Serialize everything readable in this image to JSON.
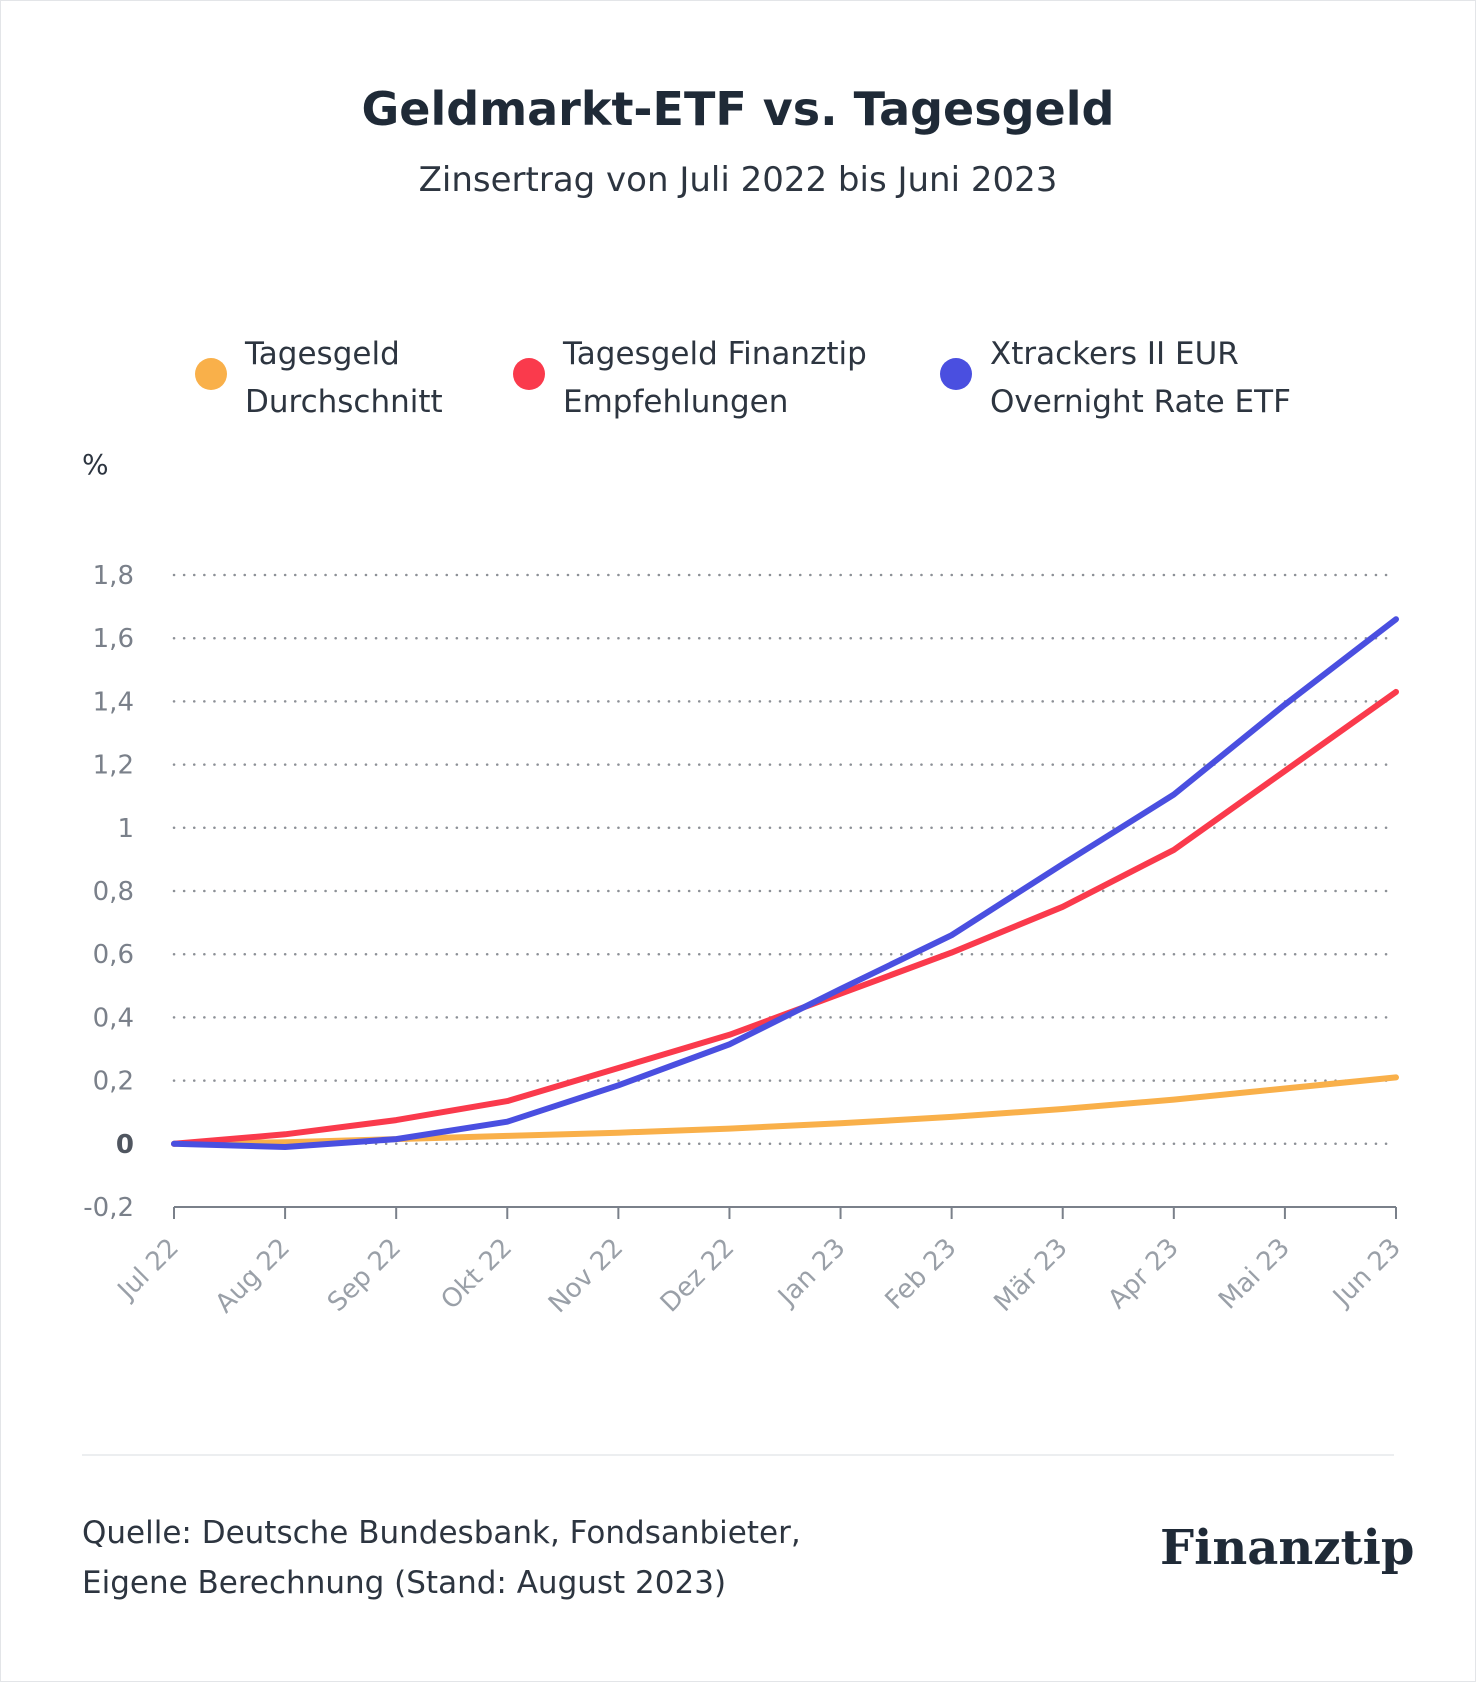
{
  "header": {
    "title": "Geldmarkt-ETF vs. Tagesgeld",
    "subtitle": "Zinsertrag von Juli 2022 bis Juni 2023"
  },
  "legend": [
    {
      "line1": "Tagesgeld",
      "line2": "Durchschnitt",
      "color": "#F9B04A"
    },
    {
      "line1": "Tagesgeld Finanztip",
      "line2": "Empfehlungen",
      "color": "#FA3A4C"
    },
    {
      "line1": "Xtrackers II EUR",
      "line2": "Overnight Rate ETF",
      "color": "#4A4FE0"
    }
  ],
  "footer": {
    "source_line1": "Quelle: Deutsche Bundesbank, Fondsanbieter,",
    "source_line2": "Eigene Berechnung (Stand: August 2023)",
    "logo": "Finanztip"
  },
  "chart_data": {
    "type": "line",
    "title": "Geldmarkt-ETF vs. Tagesgeld",
    "subtitle": "Zinsertrag von Juli 2022 bis Juni 2023",
    "ylabel": "%",
    "xlabel": "",
    "ylim": [
      -0.2,
      1.8
    ],
    "yticks": [
      "-0,2",
      "0",
      "0,2",
      "0,4",
      "0,6",
      "0,8",
      "1",
      "1,2",
      "1,4",
      "1,6",
      "1,8"
    ],
    "ytick_values": [
      -0.2,
      0,
      0.2,
      0.4,
      0.6,
      0.8,
      1.0,
      1.2,
      1.4,
      1.6,
      1.8
    ],
    "categories": [
      "Jul 22",
      "Aug 22",
      "Sep 22",
      "Okt 22",
      "Nov 22",
      "Dez 22",
      "Jan 23",
      "Feb 23",
      "Mär 23",
      "Apr 23",
      "Mai 23",
      "Jun 23"
    ],
    "grid": "horizontal dotted",
    "legend_position": "top",
    "series": [
      {
        "name": "Tagesgeld Durchschnitt",
        "color": "#F9B04A",
        "values": [
          0,
          0.005,
          0.015,
          0.025,
          0.035,
          0.048,
          0.065,
          0.085,
          0.11,
          0.14,
          0.175,
          0.21
        ]
      },
      {
        "name": "Tagesgeld Finanztip Empfehlungen",
        "color": "#FA3A4C",
        "values": [
          0,
          0.03,
          0.075,
          0.135,
          0.24,
          0.345,
          0.475,
          0.605,
          0.75,
          0.93,
          1.18,
          1.43
        ]
      },
      {
        "name": "Xtrackers II EUR Overnight Rate ETF",
        "color": "#4A4FE0",
        "values": [
          0,
          -0.01,
          0.015,
          0.07,
          0.185,
          0.315,
          0.49,
          0.66,
          0.885,
          1.105,
          1.39,
          1.66
        ]
      }
    ]
  }
}
